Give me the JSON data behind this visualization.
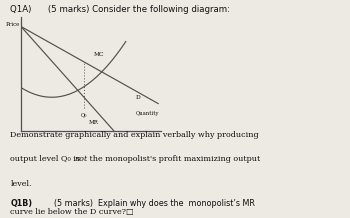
{
  "title_line1": "Q1A)      (5 marks) Consider the following diagram:",
  "ylabel": "Price",
  "xlabel": "Quantity",
  "mc_label": "MC",
  "d_label": "D",
  "mr_label": "MR",
  "q0_label": "Q₀",
  "body_line1": "Demonstrate graphically and explain verbally why producing",
  "body_line2": "output level Q₀ is ",
  "body_line2_italic": "not",
  "body_line2b": " the monopolist's profit maximizing output",
  "body_line3": "level.",
  "body_line4_bold": "Q1B)",
  "body_line4": "      (5 marks)  Explain why does the  monopolist’s MR",
  "body_line5": "curve lie below the D curve?□",
  "bg_color": "#ede9e3",
  "line_color": "#555050",
  "text_color": "#111111",
  "xlim": [
    0,
    10
  ],
  "ylim": [
    -2.5,
    10
  ],
  "q0_x": 4.5,
  "figsize": [
    3.5,
    2.18
  ],
  "dpi": 100
}
